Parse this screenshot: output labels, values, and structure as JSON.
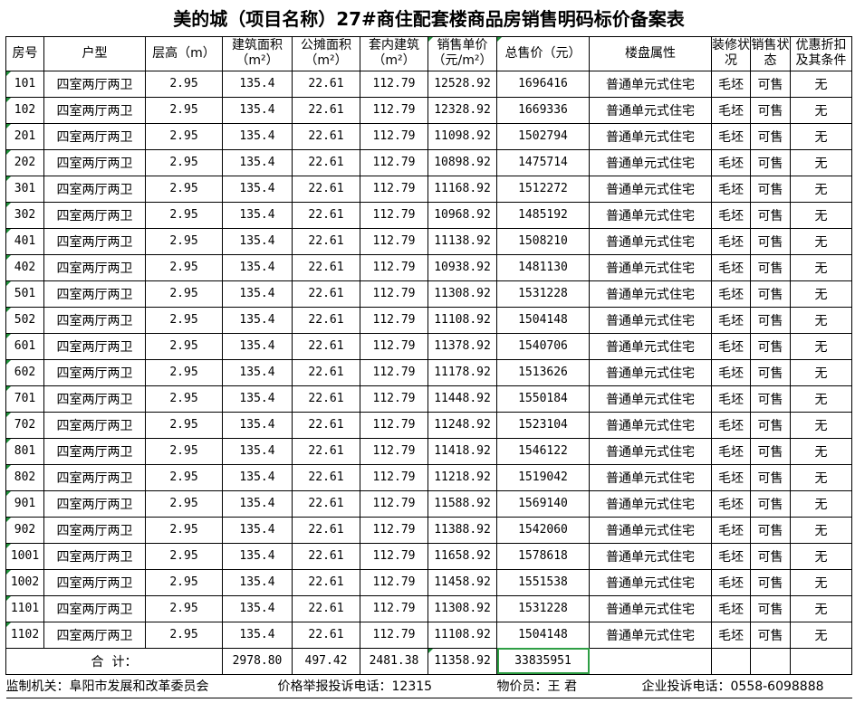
{
  "title": "美的城（项目名称）27#商住配套楼商品房销售明码标价备案表",
  "headers": [
    "房号",
    "户型",
    "层高（m）",
    "建筑面积（m²）",
    "公摊面积（m²）",
    "套内建筑（m²）",
    "销售单价（元/m²）",
    "总售价（元）",
    "楼盘属性",
    "装修状况",
    "销售状态",
    "优惠折扣及其条件"
  ],
  "rows": [
    [
      "101",
      "四室两厅两卫",
      "2.95",
      "135.4",
      "22.61",
      "112.79",
      "12528.92",
      "1696416",
      "普通单元式住宅",
      "毛坯",
      "可售",
      "无"
    ],
    [
      "102",
      "四室两厅两卫",
      "2.95",
      "135.4",
      "22.61",
      "112.79",
      "12328.92",
      "1669336",
      "普通单元式住宅",
      "毛坯",
      "可售",
      "无"
    ],
    [
      "201",
      "四室两厅两卫",
      "2.95",
      "135.4",
      "22.61",
      "112.79",
      "11098.92",
      "1502794",
      "普通单元式住宅",
      "毛坯",
      "可售",
      "无"
    ],
    [
      "202",
      "四室两厅两卫",
      "2.95",
      "135.4",
      "22.61",
      "112.79",
      "10898.92",
      "1475714",
      "普通单元式住宅",
      "毛坯",
      "可售",
      "无"
    ],
    [
      "301",
      "四室两厅两卫",
      "2.95",
      "135.4",
      "22.61",
      "112.79",
      "11168.92",
      "1512272",
      "普通单元式住宅",
      "毛坯",
      "可售",
      "无"
    ],
    [
      "302",
      "四室两厅两卫",
      "2.95",
      "135.4",
      "22.61",
      "112.79",
      "10968.92",
      "1485192",
      "普通单元式住宅",
      "毛坯",
      "可售",
      "无"
    ],
    [
      "401",
      "四室两厅两卫",
      "2.95",
      "135.4",
      "22.61",
      "112.79",
      "11138.92",
      "1508210",
      "普通单元式住宅",
      "毛坯",
      "可售",
      "无"
    ],
    [
      "402",
      "四室两厅两卫",
      "2.95",
      "135.4",
      "22.61",
      "112.79",
      "10938.92",
      "1481130",
      "普通单元式住宅",
      "毛坯",
      "可售",
      "无"
    ],
    [
      "501",
      "四室两厅两卫",
      "2.95",
      "135.4",
      "22.61",
      "112.79",
      "11308.92",
      "1531228",
      "普通单元式住宅",
      "毛坯",
      "可售",
      "无"
    ],
    [
      "502",
      "四室两厅两卫",
      "2.95",
      "135.4",
      "22.61",
      "112.79",
      "11108.92",
      "1504148",
      "普通单元式住宅",
      "毛坯",
      "可售",
      "无"
    ],
    [
      "601",
      "四室两厅两卫",
      "2.95",
      "135.4",
      "22.61",
      "112.79",
      "11378.92",
      "1540706",
      "普通单元式住宅",
      "毛坯",
      "可售",
      "无"
    ],
    [
      "602",
      "四室两厅两卫",
      "2.95",
      "135.4",
      "22.61",
      "112.79",
      "11178.92",
      "1513626",
      "普通单元式住宅",
      "毛坯",
      "可售",
      "无"
    ],
    [
      "701",
      "四室两厅两卫",
      "2.95",
      "135.4",
      "22.61",
      "112.79",
      "11448.92",
      "1550184",
      "普通单元式住宅",
      "毛坯",
      "可售",
      "无"
    ],
    [
      "702",
      "四室两厅两卫",
      "2.95",
      "135.4",
      "22.61",
      "112.79",
      "11248.92",
      "1523104",
      "普通单元式住宅",
      "毛坯",
      "可售",
      "无"
    ],
    [
      "801",
      "四室两厅两卫",
      "2.95",
      "135.4",
      "22.61",
      "112.79",
      "11418.92",
      "1546122",
      "普通单元式住宅",
      "毛坯",
      "可售",
      "无"
    ],
    [
      "802",
      "四室两厅两卫",
      "2.95",
      "135.4",
      "22.61",
      "112.79",
      "11218.92",
      "1519042",
      "普通单元式住宅",
      "毛坯",
      "可售",
      "无"
    ],
    [
      "901",
      "四室两厅两卫",
      "2.95",
      "135.4",
      "22.61",
      "112.79",
      "11588.92",
      "1569140",
      "普通单元式住宅",
      "毛坯",
      "可售",
      "无"
    ],
    [
      "902",
      "四室两厅两卫",
      "2.95",
      "135.4",
      "22.61",
      "112.79",
      "11388.92",
      "1542060",
      "普通单元式住宅",
      "毛坯",
      "可售",
      "无"
    ],
    [
      "1001",
      "四室两厅两卫",
      "2.95",
      "135.4",
      "22.61",
      "112.79",
      "11658.92",
      "1578618",
      "普通单元式住宅",
      "毛坯",
      "可售",
      "无"
    ],
    [
      "1002",
      "四室两厅两卫",
      "2.95",
      "135.4",
      "22.61",
      "112.79",
      "11458.92",
      "1551538",
      "普通单元式住宅",
      "毛坯",
      "可售",
      "无"
    ],
    [
      "1101",
      "四室两厅两卫",
      "2.95",
      "135.4",
      "22.61",
      "112.79",
      "11308.92",
      "1531228",
      "普通单元式住宅",
      "毛坯",
      "可售",
      "无"
    ],
    [
      "1102",
      "四室两厅两卫",
      "2.95",
      "135.4",
      "22.61",
      "112.79",
      "11108.92",
      "1504148",
      "普通单元式住宅",
      "毛坯",
      "可售",
      "无"
    ]
  ],
  "total": {
    "label": "合  计：",
    "building_area": "2978.80",
    "shared_area": "497.42",
    "inner_area": "2481.38",
    "unit_price": "11358.92",
    "total_price": "33835951"
  },
  "footer": {
    "authority": "监制机关：阜阳市发展和改革委员会",
    "hotline": "价格举报投诉电话：12315",
    "officer": "物价员：王 君",
    "complaint": "企业投诉电话：0558-6098888"
  },
  "colors": {
    "selection": "#2e9e44",
    "text_marker": "#1f8f3a"
  }
}
